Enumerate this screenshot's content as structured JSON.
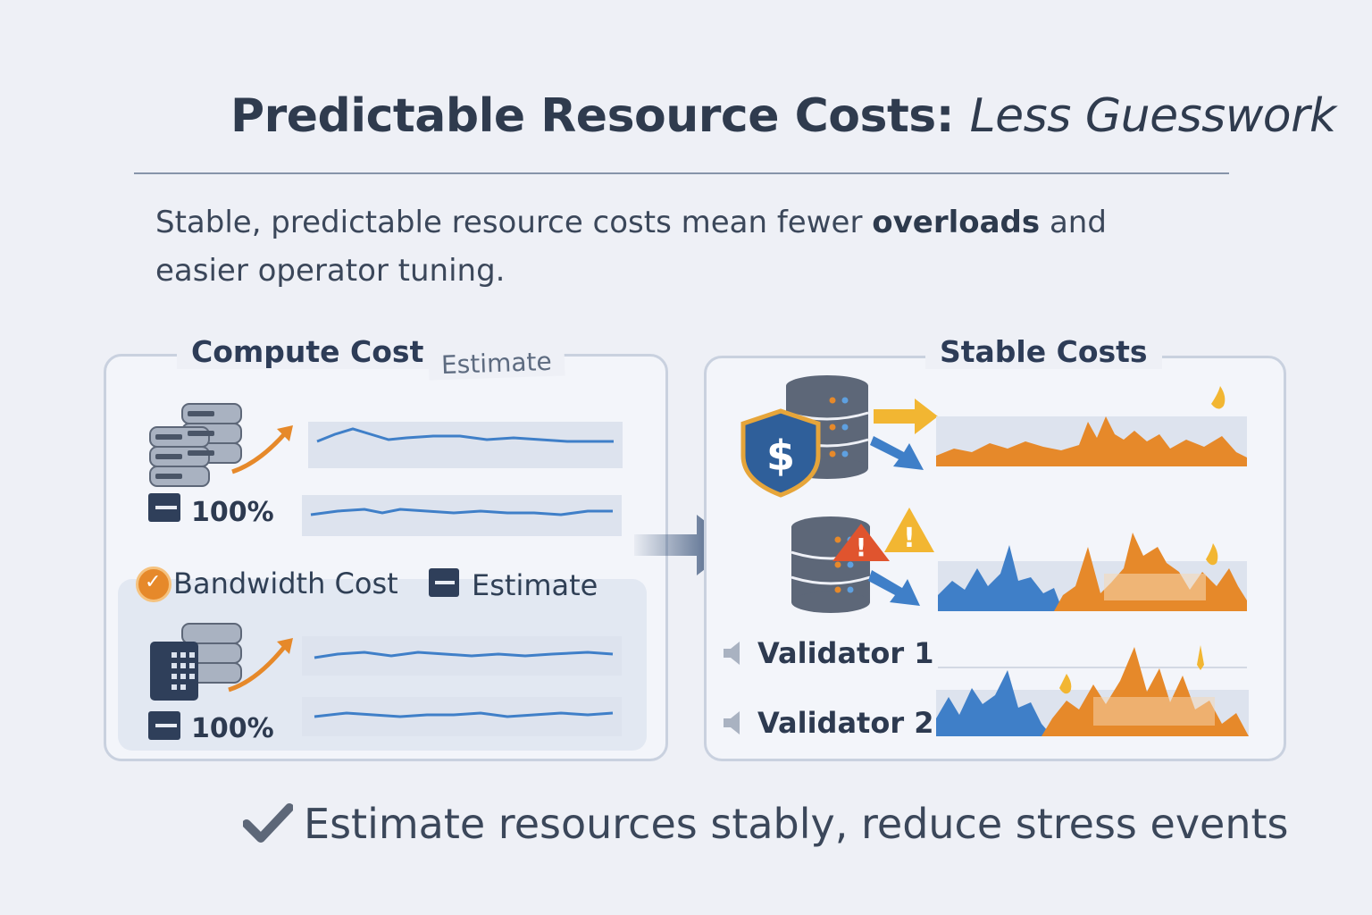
{
  "header": {
    "title": "Predictable Resource Costs:",
    "title_emphasis": "Less Guesswork",
    "lead_before": "Stable, predictable resource costs mean fewer ",
    "lead_bold": "overloads",
    "lead_after": " and easier operator tuning."
  },
  "left_panel": {
    "title": "Compute Cost",
    "title_tag": "Estimate",
    "compute_percent": "100%",
    "bandwidth_label": "Bandwidth Cost",
    "bandwidth_tag": "Estimate",
    "bandwidth_percent": "100%"
  },
  "right_panel": {
    "title": "Stable Costs",
    "validators": [
      "Validator 1",
      "Validator 2"
    ]
  },
  "footer": {
    "text": "Estimate resources stably, reduce stress events"
  },
  "colors": {
    "accent_blue": "#3f7fc8",
    "accent_orange": "#e6892a",
    "warning_red": "#e0542e",
    "warning_yellow": "#f2b632",
    "shield_blue": "#2f5f9a",
    "server_gray": "#5d6778"
  }
}
